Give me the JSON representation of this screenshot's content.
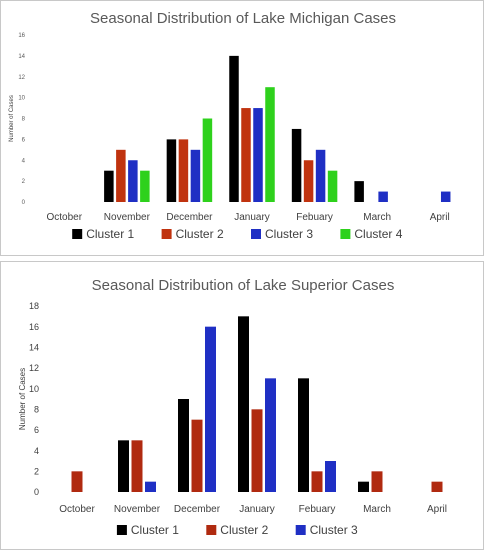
{
  "chart_data": [
    {
      "type": "bar",
      "title": "Seasonal Distribution of Lake Michigan Cases",
      "ylabel": "Number of Cases",
      "xlabel": "",
      "categories": [
        "October",
        "November",
        "December",
        "January",
        "Febuary",
        "March",
        "April"
      ],
      "ylim": [
        0,
        16
      ],
      "yticks": [
        0,
        2,
        4,
        6,
        8,
        10,
        12,
        14,
        16
      ],
      "grid": false,
      "legend_position": "bottom",
      "series": [
        {
          "name": "Cluster 1",
          "color": "#000000",
          "values": [
            0,
            3,
            6,
            14,
            7,
            2,
            0
          ]
        },
        {
          "name": "Cluster 2",
          "color": "#c0330f",
          "values": [
            0,
            5,
            6,
            9,
            4,
            0,
            0
          ]
        },
        {
          "name": "Cluster 3",
          "color": "#1f2fc4",
          "values": [
            0,
            4,
            5,
            9,
            5,
            1,
            1
          ]
        },
        {
          "name": "Cluster 4",
          "color": "#2ed11c",
          "values": [
            0,
            3,
            8,
            11,
            3,
            0,
            0
          ]
        }
      ]
    },
    {
      "type": "bar",
      "title": "Seasonal Distribution of Lake Superior Cases",
      "ylabel": "Number of Cases",
      "xlabel": "",
      "categories": [
        "October",
        "November",
        "December",
        "January",
        "Febuary",
        "March",
        "April"
      ],
      "ylim": [
        0,
        18
      ],
      "yticks": [
        0,
        2,
        4,
        6,
        8,
        10,
        12,
        14,
        16,
        18
      ],
      "grid": false,
      "legend_position": "bottom",
      "series": [
        {
          "name": "Cluster 1",
          "color": "#000000",
          "values": [
            0,
            5,
            9,
            17,
            11,
            1,
            0
          ]
        },
        {
          "name": "Cluster 2",
          "color": "#b02a10",
          "values": [
            2,
            5,
            7,
            8,
            2,
            2,
            1
          ]
        },
        {
          "name": "Cluster 3",
          "color": "#1f2fc4",
          "values": [
            0,
            1,
            16,
            11,
            3,
            0,
            0
          ]
        }
      ]
    }
  ]
}
